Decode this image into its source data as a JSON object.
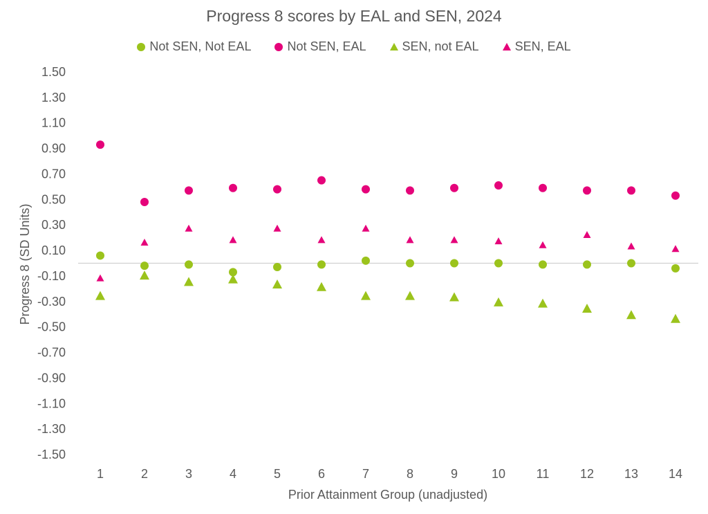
{
  "chart_data": {
    "type": "scatter",
    "title": "Progress 8 scores by EAL and SEN, 2024",
    "xlabel": "Prior Attainment Group (unadjusted)",
    "ylabel": "Progress 8 (SD Units)",
    "ylim": [
      -1.5,
      1.5
    ],
    "y_ticks": [
      "1.50",
      "1.30",
      "1.10",
      "0.90",
      "0.70",
      "0.50",
      "0.30",
      "0.10",
      "-0.10",
      "-0.30",
      "-0.50",
      "-0.70",
      "-0.90",
      "-1.10",
      "-1.30",
      "-1.50"
    ],
    "x": [
      1,
      2,
      3,
      4,
      5,
      6,
      7,
      8,
      9,
      10,
      11,
      12,
      13,
      14
    ],
    "x_tick_labels": [
      "1",
      "2",
      "3",
      "4",
      "5",
      "6",
      "7",
      "8",
      "9",
      "10",
      "11",
      "12",
      "13",
      "14"
    ],
    "grid": false,
    "zero_line": true,
    "legend_position": "top",
    "series": [
      {
        "name": "Not SEN, Not EAL",
        "marker": "circle",
        "size": "large",
        "color": "#9bc31c",
        "values": [
          0.06,
          -0.02,
          -0.01,
          -0.07,
          -0.03,
          -0.01,
          0.02,
          0.0,
          0.0,
          0.0,
          -0.01,
          -0.01,
          0.0,
          -0.04
        ]
      },
      {
        "name": "Not SEN, EAL",
        "marker": "circle",
        "size": "large",
        "color": "#e5037a",
        "values": [
          0.93,
          0.48,
          0.57,
          0.59,
          0.58,
          0.65,
          0.58,
          0.57,
          0.59,
          0.61,
          0.59,
          0.57,
          0.57,
          0.53
        ]
      },
      {
        "name": "SEN, not EAL",
        "marker": "triangle",
        "size": "large",
        "color": "#9bc31c",
        "values": [
          -0.26,
          -0.1,
          -0.15,
          -0.13,
          -0.17,
          -0.19,
          -0.26,
          -0.26,
          -0.27,
          -0.31,
          -0.32,
          -0.36,
          -0.41,
          -0.44
        ]
      },
      {
        "name": "SEN, EAL",
        "marker": "triangle",
        "size": "small",
        "color": "#e5037a",
        "values": [
          -0.12,
          0.16,
          0.27,
          0.18,
          0.27,
          0.18,
          0.27,
          0.18,
          0.18,
          0.17,
          0.14,
          0.22,
          0.13,
          0.11
        ]
      }
    ]
  }
}
